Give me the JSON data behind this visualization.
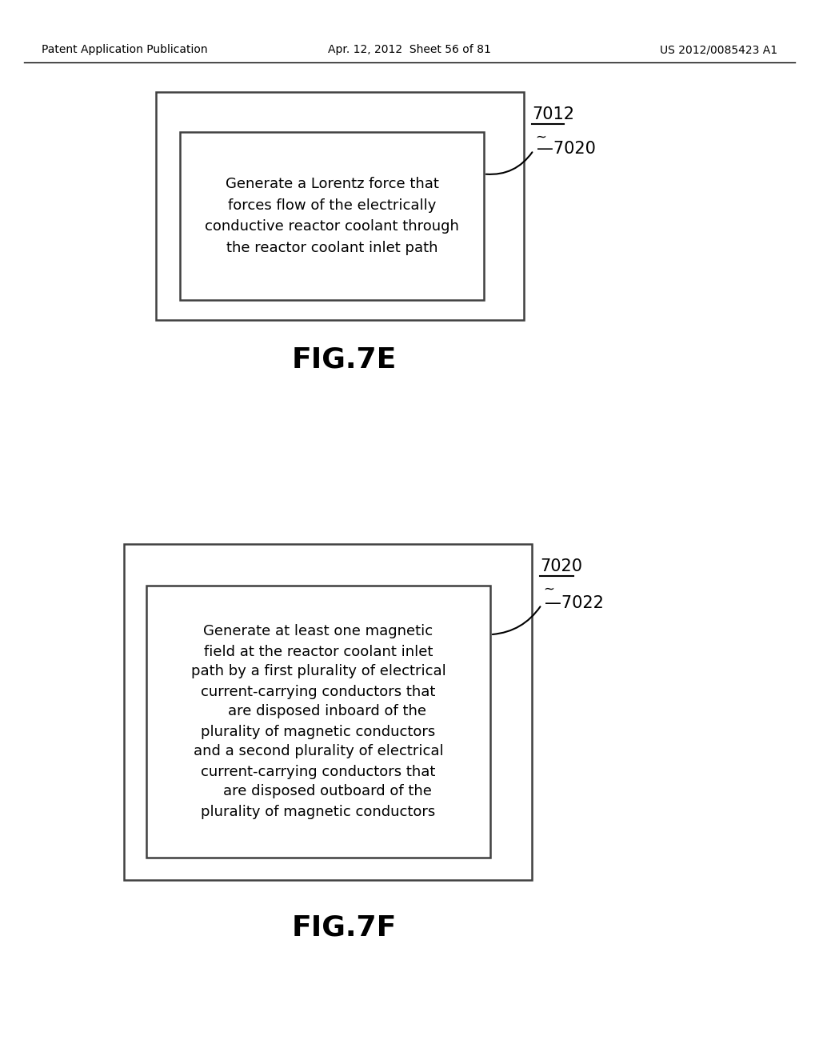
{
  "background_color": "#ffffff",
  "header_left": "Patent Application Publication",
  "header_center": "Apr. 12, 2012  Sheet 56 of 81",
  "header_right": "US 2012/0085423 A1",
  "header_fontsize": 10,
  "fig7e_label": "FIG.7E",
  "fig7f_label": "FIG.7F",
  "fig_label_fontsize": 26,
  "box1_outer_ref": "7012",
  "box1_inner_ref": "—7020",
  "box1_inner_text": "Generate a Lorentz force that\nforces flow of the electrically\nconductive reactor coolant through\nthe reactor coolant inlet path",
  "box2_outer_ref": "7020",
  "box2_inner_ref": "—7022",
  "box2_inner_text": "Generate at least one magnetic\nfield at the reactor coolant inlet\npath by a first plurality of electrical\ncurrent-carrying conductors that\n    are disposed inboard of the\nplurality of magnetic conductors\nand a second plurality of electrical\ncurrent-carrying conductors that\n    are disposed outboard of the\nplurality of magnetic conductors",
  "text_fontsize": 13,
  "ref_fontsize": 15,
  "tilde": "~"
}
